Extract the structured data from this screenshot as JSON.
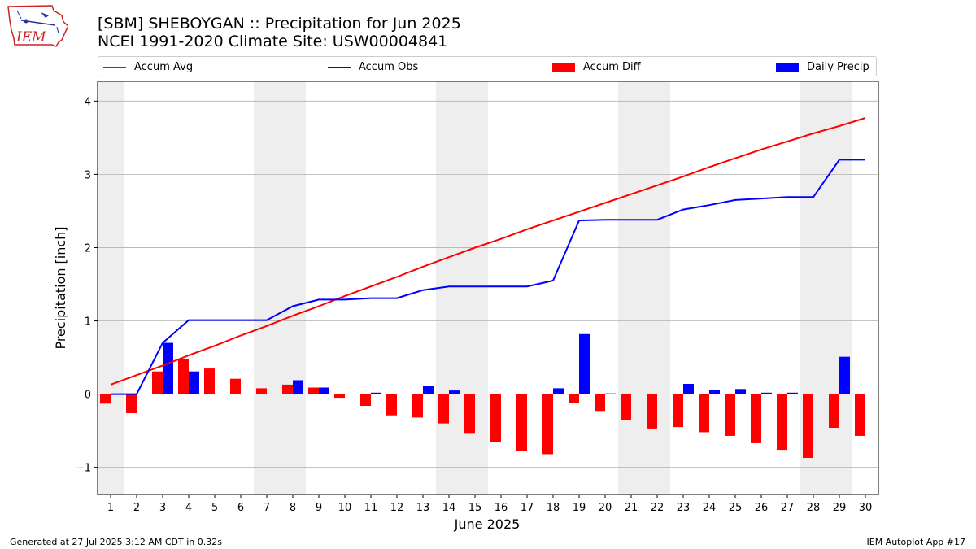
{
  "header": {
    "title_line1": "[SBM] SHEBOYGAN :: Precipitation for Jun 2025",
    "title_line2": "NCEI 1991-2020 Climate Site: USW00004841"
  },
  "logo": {
    "text": "IEM",
    "icon": "iem-iowa-logo"
  },
  "legend": {
    "accum_avg": "Accum Avg",
    "accum_obs": "Accum Obs",
    "accum_diff": "Accum Diff",
    "daily_precip": "Daily Precip"
  },
  "footer": {
    "left": "Generated at 27 Jul 2025 3:12 AM CDT in 0.32s",
    "right": "IEM Autoplot App #17"
  },
  "colors": {
    "accum_avg": "#ff0000",
    "accum_obs": "#0000ff",
    "accum_diff": "#ff0000",
    "daily_precip": "#0000ff",
    "weekend_shade": "#eeeeee",
    "grid": "#b0b0b0"
  },
  "chart_data": {
    "type": "bar",
    "title": "[SBM] SHEBOYGAN :: Precipitation for Jun 2025",
    "subtitle": "NCEI 1991-2020 Climate Site: USW00004841",
    "xlabel": "June 2025",
    "ylabel": "Precipitation [inch]",
    "ylim": [
      -1.37,
      4.27
    ],
    "yticks": [
      -1,
      0,
      1,
      2,
      3,
      4
    ],
    "ytick_labels": [
      "−1",
      "0",
      "1",
      "2",
      "3",
      "4"
    ],
    "grid": "y",
    "legend_position": "top",
    "categories": [
      "1",
      "2",
      "3",
      "4",
      "5",
      "6",
      "7",
      "8",
      "9",
      "10",
      "11",
      "12",
      "13",
      "14",
      "15",
      "16",
      "17",
      "18",
      "19",
      "20",
      "21",
      "22",
      "23",
      "24",
      "25",
      "26",
      "27",
      "28",
      "29",
      "30"
    ],
    "weekend_shaded_days": [
      1,
      7,
      8,
      14,
      15,
      21,
      22,
      28,
      29
    ],
    "series": [
      {
        "name": "Accum Avg",
        "kind": "line",
        "values": [
          0.13,
          0.26,
          0.39,
          0.53,
          0.66,
          0.8,
          0.93,
          1.07,
          1.2,
          1.34,
          1.47,
          1.6,
          1.74,
          1.87,
          2.0,
          2.12,
          2.25,
          2.37,
          2.49,
          2.61,
          2.73,
          2.85,
          2.97,
          3.1,
          3.22,
          3.34,
          3.45,
          3.56,
          3.66,
          3.77
        ]
      },
      {
        "name": "Accum Obs",
        "kind": "line",
        "values": [
          0.0,
          0.0,
          0.7,
          1.01,
          1.01,
          1.01,
          1.01,
          1.2,
          1.29,
          1.29,
          1.31,
          1.31,
          1.42,
          1.47,
          1.47,
          1.47,
          1.47,
          1.55,
          2.37,
          2.38,
          2.38,
          2.38,
          2.52,
          2.58,
          2.65,
          2.67,
          2.69,
          2.69,
          3.2,
          3.2
        ]
      },
      {
        "name": "Accum Diff",
        "kind": "bar",
        "values": [
          -0.13,
          -0.26,
          0.31,
          0.48,
          0.35,
          0.21,
          0.08,
          0.13,
          0.09,
          -0.05,
          -0.16,
          -0.29,
          -0.32,
          -0.4,
          -0.53,
          -0.65,
          -0.78,
          -0.82,
          -0.12,
          -0.23,
          -0.35,
          -0.47,
          -0.45,
          -0.52,
          -0.57,
          -0.67,
          -0.76,
          -0.87,
          -0.46,
          -0.57
        ]
      },
      {
        "name": "Daily Precip",
        "kind": "bar",
        "values": [
          0.0,
          0.0,
          0.7,
          0.31,
          0.0,
          0.0,
          0.0,
          0.19,
          0.09,
          0.0,
          0.02,
          0.0,
          0.11,
          0.05,
          0.0,
          0.0,
          0.0,
          0.08,
          0.82,
          0.01,
          0.0,
          0.0,
          0.14,
          0.06,
          0.07,
          0.02,
          0.02,
          0.0,
          0.51,
          0.0
        ]
      }
    ]
  }
}
